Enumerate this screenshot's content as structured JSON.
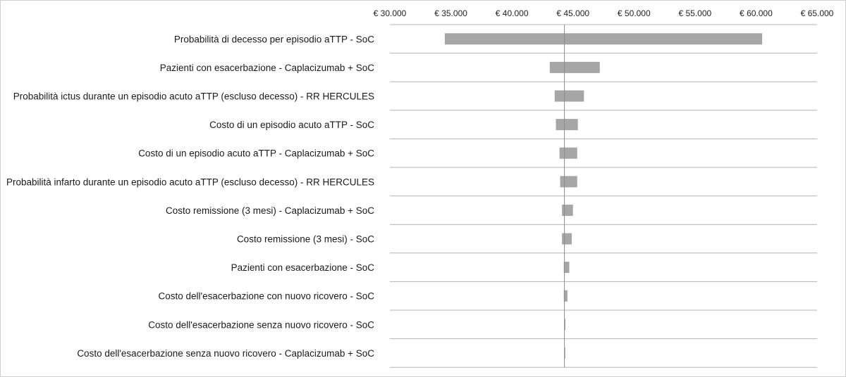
{
  "chart_data": {
    "type": "bar",
    "orientation": "horizontal",
    "title": "",
    "xlabel": "",
    "ylabel": "",
    "x_tick_labels": [
      "€ 30.000",
      "€ 35.000",
      "€ 40.000",
      "€ 45.000",
      "€ 50.000",
      "€ 55.000",
      "€ 60.000",
      "€ 65.000"
    ],
    "x_ticks": [
      30000,
      35000,
      40000,
      45000,
      50000,
      55000,
      60000,
      65000
    ],
    "xlim": [
      30000,
      65000
    ],
    "base_value": 44300,
    "categories": [
      "Probabilità di decesso per episodio aTTP - SoC",
      "Pazienti con esacerbazione - Caplacizumab + SoC",
      "Probabilità ictus durante un episodio acuto aTTP (escluso decesso) - RR HERCULES",
      "Costo di un episodio acuto aTTP - SoC",
      "Costo di un episodio acuto aTTP - Caplacizumab + SoC",
      "Probabilità infarto durante un episodio acuto aTTP (escluso decesso) - RR HERCULES",
      "Costo remissione (3 mesi) - Caplacizumab + SoC",
      "Costo remissione (3 mesi) - SoC",
      "Pazienti con esacerbazione - SoC",
      "Costo dell'esacerbazione con nuovo ricovero - SoC",
      "Costo dell'esacerbazione senza nuovo ricovero - SoC",
      "Costo dell'esacerbazione senza nuovo ricovero - Caplacizumab + SoC"
    ],
    "ranges": [
      [
        34500,
        60500
      ],
      [
        43100,
        47200
      ],
      [
        43500,
        45900
      ],
      [
        43600,
        45400
      ],
      [
        43900,
        45350
      ],
      [
        43950,
        45350
      ],
      [
        44100,
        45000
      ],
      [
        44100,
        44900
      ],
      [
        44250,
        44700
      ],
      [
        44250,
        44550
      ],
      [
        44300,
        44380
      ],
      [
        44300,
        44360
      ]
    ],
    "grid": false,
    "legend": "none"
  }
}
